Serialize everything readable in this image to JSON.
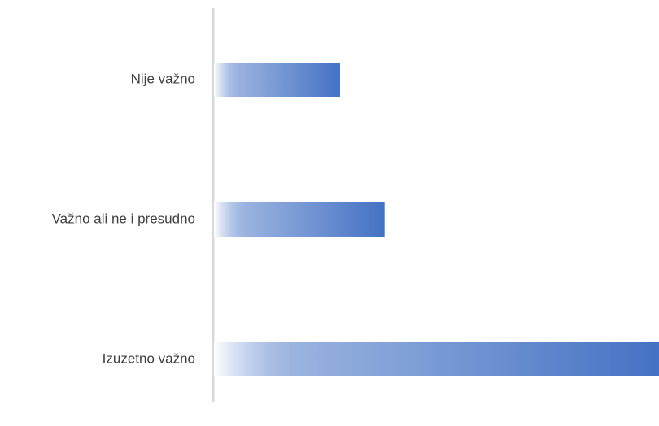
{
  "chart_data": {
    "type": "bar",
    "orientation": "horizontal",
    "categories": [
      "Nije važno",
      "Važno ali ne i presudno",
      "Izuzetno važno"
    ],
    "values": [
      17,
      23,
      60
    ],
    "color": "#4472c4",
    "xlim": [
      0,
      60
    ]
  }
}
